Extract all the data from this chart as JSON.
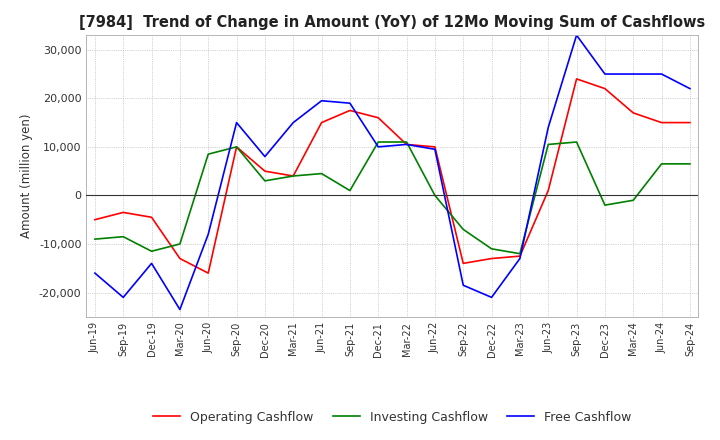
{
  "title": "[7984]  Trend of Change in Amount (YoY) of 12Mo Moving Sum of Cashflows",
  "ylabel": "Amount (million yen)",
  "ylim": [
    -25000,
    33000
  ],
  "yticks": [
    -20000,
    -10000,
    0,
    10000,
    20000,
    30000
  ],
  "legend": [
    "Operating Cashflow",
    "Investing Cashflow",
    "Free Cashflow"
  ],
  "colors": [
    "#ff0000",
    "#008000",
    "#0000ff"
  ],
  "background_color": "#ffffff",
  "grid_color": "#aaaaaa",
  "x_labels": [
    "Jun-19",
    "Sep-19",
    "Dec-19",
    "Mar-20",
    "Jun-20",
    "Sep-20",
    "Dec-20",
    "Mar-21",
    "Jun-21",
    "Sep-21",
    "Dec-21",
    "Mar-22",
    "Jun-22",
    "Sep-22",
    "Dec-22",
    "Mar-23",
    "Jun-23",
    "Sep-23",
    "Dec-23",
    "Mar-24",
    "Jun-24",
    "Sep-24"
  ],
  "operating": [
    -5000,
    -3500,
    -4500,
    -13000,
    -16000,
    10000,
    5000,
    4000,
    15000,
    17500,
    16000,
    10500,
    10000,
    -14000,
    -13000,
    -12500,
    1000,
    24000,
    22000,
    17000,
    15000,
    15000
  ],
  "investing": [
    -9000,
    -8500,
    -11500,
    -10000,
    8500,
    10000,
    3000,
    4000,
    4500,
    1000,
    11000,
    11000,
    0,
    -7000,
    -11000,
    -12000,
    10500,
    11000,
    -2000,
    -1000,
    6500,
    6500
  ],
  "free": [
    -16000,
    -21000,
    -14000,
    -23500,
    -8000,
    15000,
    8000,
    15000,
    19500,
    19000,
    10000,
    10500,
    9500,
    -18500,
    -21000,
    -13000,
    14000,
    33000,
    25000,
    25000,
    25000,
    22000
  ]
}
